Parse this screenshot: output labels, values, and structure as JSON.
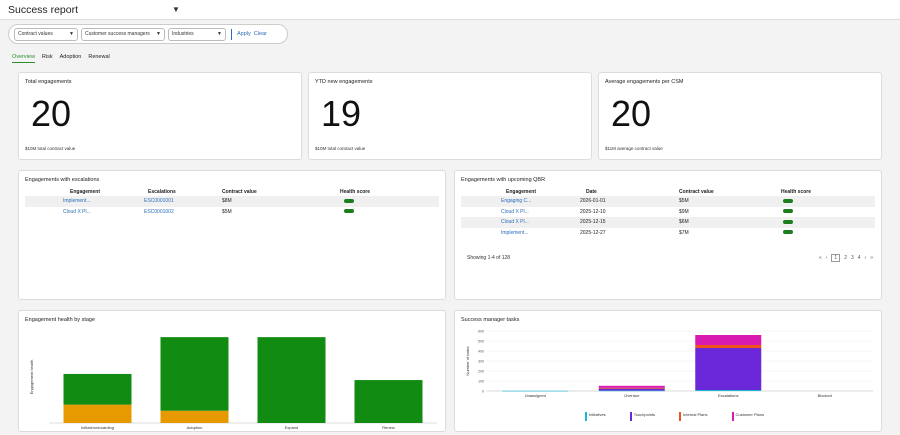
{
  "header": {
    "title": "Success report"
  },
  "filters": {
    "contract_values": "Contract values",
    "csm": "Customer success managers",
    "industries": "Industries",
    "apply": "Apply",
    "clear": "Clear"
  },
  "tabs": [
    "Overview",
    "Risk",
    "Adoption",
    "Renewal"
  ],
  "kpis": [
    {
      "title": "Total engagements",
      "value": "20",
      "sub": "$10M total contract value"
    },
    {
      "title": "YTD new engagements",
      "value": "19",
      "sub": "$10M total contract value"
    },
    {
      "title": "Average engagements per CSM",
      "value": "20",
      "sub": "$11M average contract value"
    }
  ],
  "escalations": {
    "title": "Engagements with escalations",
    "columns": [
      "Engagement",
      "Escalations",
      "Contract value",
      "Health score"
    ],
    "rows": [
      {
        "engagement": "Implement...",
        "escalation": "ESC0001001",
        "value": "$8M"
      },
      {
        "engagement": "Cloud X Pl...",
        "escalation": "ESC0001002",
        "value": "$5M"
      }
    ]
  },
  "qbr": {
    "title": "Engagements with upcoming QBR",
    "columns": [
      "Engagement",
      "Date",
      "Contract value",
      "Health score"
    ],
    "rows": [
      {
        "engagement": "Engaging C...",
        "date": "2026-01-01",
        "value": "$5M"
      },
      {
        "engagement": "Cloud X Pl...",
        "date": "2025-12-10",
        "value": "$9M"
      },
      {
        "engagement": "Cloud X Pl...",
        "date": "2025-12-15",
        "value": "$6M"
      },
      {
        "engagement": "Implement...",
        "date": "2025-12-27",
        "value": "$7M"
      }
    ],
    "showing": "Showing 1-4 of 128",
    "pager": {
      "prev2": "«",
      "prev": "‹",
      "pages": [
        "1",
        "2",
        "3",
        "4"
      ],
      "next": "›",
      "next2": "»"
    }
  },
  "chart_data": [
    {
      "type": "bar",
      "title": "Engagement health by stage",
      "ylabel": "Engagement health",
      "categories": [
        "Initiate/onboarding",
        "Adoption",
        "Expand",
        "Renew"
      ],
      "series": [
        {
          "values": [
            15,
            10,
            0,
            0
          ],
          "color": "#e69a00"
        },
        {
          "values": [
            25,
            60,
            70,
            35
          ],
          "color": "#128b12"
        }
      ],
      "ylim": [
        0,
        75
      ],
      "stacked": true
    },
    {
      "type": "bar",
      "title": "Success manager tasks",
      "ylabel": "Number of tasks",
      "categories": [
        "Unassigned",
        "Overdue",
        "Escalations",
        "Blocked"
      ],
      "series": [
        {
          "name": "Initiatives",
          "values": [
            2,
            4,
            10,
            0
          ],
          "color": "#18b8d6"
        },
        {
          "name": "Touchpoints",
          "values": [
            0,
            20,
            420,
            0
          ],
          "color": "#6b28d8"
        },
        {
          "name": "Internal Plans",
          "values": [
            0,
            8,
            30,
            0
          ],
          "color": "#f0521e"
        },
        {
          "name": "Customer Plans",
          "values": [
            0,
            20,
            100,
            0
          ],
          "color": "#d91ab0"
        }
      ],
      "yticks": [
        "0",
        "100",
        "200",
        "300",
        "400",
        "500",
        "600"
      ],
      "ylim": [
        0,
        600
      ],
      "stacked": true,
      "legend": "bottom"
    }
  ]
}
